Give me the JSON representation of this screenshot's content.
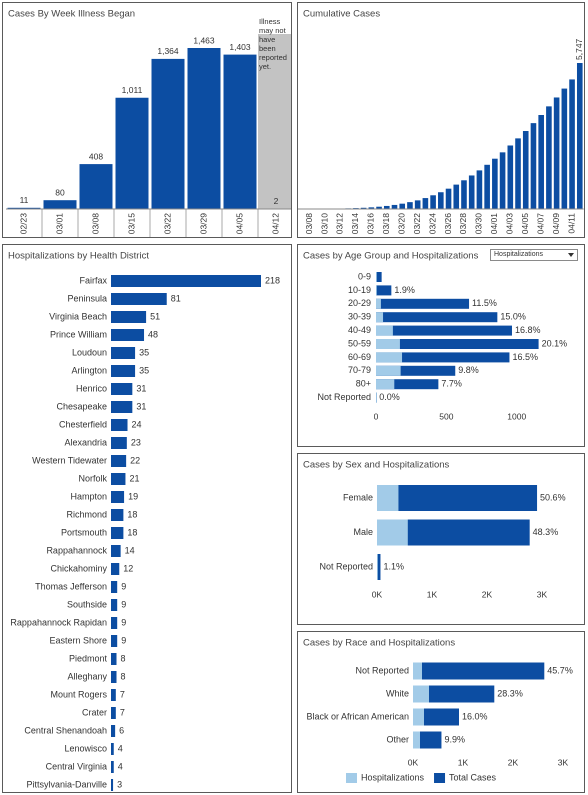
{
  "chart_data": [
    {
      "type": "bar",
      "title": "Cases By Week Illness Began",
      "categories": [
        "02/23",
        "03/01",
        "03/08",
        "03/15",
        "03/22",
        "03/29",
        "04/05",
        "04/12"
      ],
      "values": [
        11,
        80,
        408,
        1011,
        1364,
        1463,
        1403,
        2
      ],
      "value_labels": [
        "11",
        "80",
        "408",
        "1,011",
        "1,364",
        "1,463",
        "1,403",
        "2"
      ],
      "color": "#0c4da2",
      "shade_color": "#c3c3c3",
      "annotation": "Illness may not have been reported yet."
    },
    {
      "type": "bar",
      "title": "Cumulative Cases",
      "categories": [
        null,
        "03/08",
        null,
        "03/10",
        null,
        "03/12",
        null,
        "03/14",
        null,
        "03/16",
        null,
        "03/18",
        null,
        "03/20",
        null,
        "03/22",
        null,
        "03/24",
        null,
        "03/26",
        null,
        "03/28",
        null,
        "03/30",
        null,
        "04/01",
        null,
        "04/03",
        null,
        "04/05",
        null,
        "04/07",
        null,
        "04/09",
        null,
        "04/11",
        null
      ],
      "values": [
        2,
        3,
        5,
        8,
        12,
        18,
        25,
        35,
        48,
        65,
        90,
        120,
        160,
        210,
        270,
        340,
        430,
        540,
        660,
        800,
        960,
        1130,
        1320,
        1520,
        1740,
        1980,
        2230,
        2500,
        2780,
        3070,
        3380,
        3700,
        4040,
        4390,
        4740,
        5100,
        5747
      ],
      "value_labels": [
        null,
        null,
        null,
        null,
        null,
        null,
        null,
        null,
        null,
        null,
        null,
        null,
        null,
        null,
        null,
        null,
        null,
        null,
        null,
        null,
        null,
        null,
        null,
        null,
        null,
        null,
        null,
        null,
        null,
        null,
        null,
        null,
        null,
        null,
        null,
        null,
        "5,747"
      ],
      "color": "#0c4da2"
    },
    {
      "type": "barh",
      "title": "Hospitalizations by Health District",
      "categories": [
        "Fairfax",
        "Peninsula",
        "Virginia Beach",
        "Prince William",
        "Loudoun",
        "Arlington",
        "Henrico",
        "Chesapeake",
        "Chesterfield",
        "Alexandria",
        "Western Tidewater",
        "Norfolk",
        "Hampton",
        "Richmond",
        "Portsmouth",
        "Rappahannock",
        "Chickahominy",
        "Thomas Jefferson",
        "Southside",
        "Rappahannock Rapidan",
        "Eastern Shore",
        "Piedmont",
        "Alleghany",
        "Mount Rogers",
        "Crater",
        "Central Shenandoah",
        "Lenowisco",
        "Central Virginia",
        "Pittsylvania-Danville"
      ],
      "values": [
        218,
        81,
        51,
        48,
        35,
        35,
        31,
        31,
        24,
        23,
        22,
        21,
        19,
        18,
        18,
        14,
        12,
        9,
        9,
        9,
        9,
        8,
        8,
        7,
        7,
        6,
        4,
        4,
        3
      ],
      "color": "#0c4da2"
    },
    {
      "type": "barh",
      "title": "Cases by Age Group and Hospitalizations",
      "dropdown": "Hospitalizations",
      "categories": [
        "0-9",
        "10-19",
        "20-29",
        "30-39",
        "40-49",
        "50-59",
        "60-69",
        "70-79",
        "80+",
        "Not Reported"
      ],
      "series": [
        {
          "color": "#a2cbe8",
          "values": [
            0,
            3,
            35,
            50,
            120,
            170,
            185,
            175,
            130,
            0
          ]
        },
        {
          "color": "#0c4da2",
          "values": [
            40,
            109,
            661,
            862,
            966,
            1155,
            948,
            563,
            443,
            2
          ]
        }
      ],
      "share_labels": [
        null,
        "1.9%",
        "11.5%",
        "15.0%",
        "16.8%",
        "20.1%",
        "16.5%",
        "9.8%",
        "7.7%",
        "0.0%"
      ],
      "xlim": [
        0,
        1300
      ],
      "xticks": [
        0,
        500,
        1000
      ]
    },
    {
      "type": "barh",
      "title": "Cases by Sex and Hospitalizations",
      "categories": [
        "Female",
        "Male",
        "Not Reported"
      ],
      "series": [
        {
          "color": "#a2cbe8",
          "values": [
            390,
            560,
            5
          ]
        },
        {
          "color": "#0c4da2",
          "values": [
            2910,
            2776,
            63
          ]
        }
      ],
      "share_labels": [
        "50.6%",
        "48.3%",
        "1.1%"
      ],
      "xlim": [
        0,
        3600
      ],
      "xticks": [
        {
          "value": 0,
          "label": "0K"
        },
        {
          "value": 1000,
          "label": "1K"
        },
        {
          "value": 2000,
          "label": "2K"
        },
        {
          "value": 3000,
          "label": "3K"
        }
      ]
    },
    {
      "type": "barh",
      "title": "Cases by Race and Hospitalizations",
      "categories": [
        "Not Reported",
        "White",
        "Black or African American",
        "Other"
      ],
      "series": [
        {
          "name": "Hospitalizations",
          "color": "#a2cbe8",
          "values": [
            180,
            320,
            220,
            140
          ]
        },
        {
          "name": "Total Cases",
          "color": "#0c4da2",
          "values": [
            2626,
            1626,
            920,
            569
          ]
        }
      ],
      "share_labels": [
        "45.7%",
        "28.3%",
        "16.0%",
        "9.9%"
      ],
      "xlim": [
        0,
        3400
      ],
      "xticks": [
        {
          "value": 0,
          "label": "0K"
        },
        {
          "value": 1000,
          "label": "1K"
        },
        {
          "value": 2000,
          "label": "2K"
        },
        {
          "value": 3000,
          "label": "3K"
        }
      ]
    }
  ]
}
